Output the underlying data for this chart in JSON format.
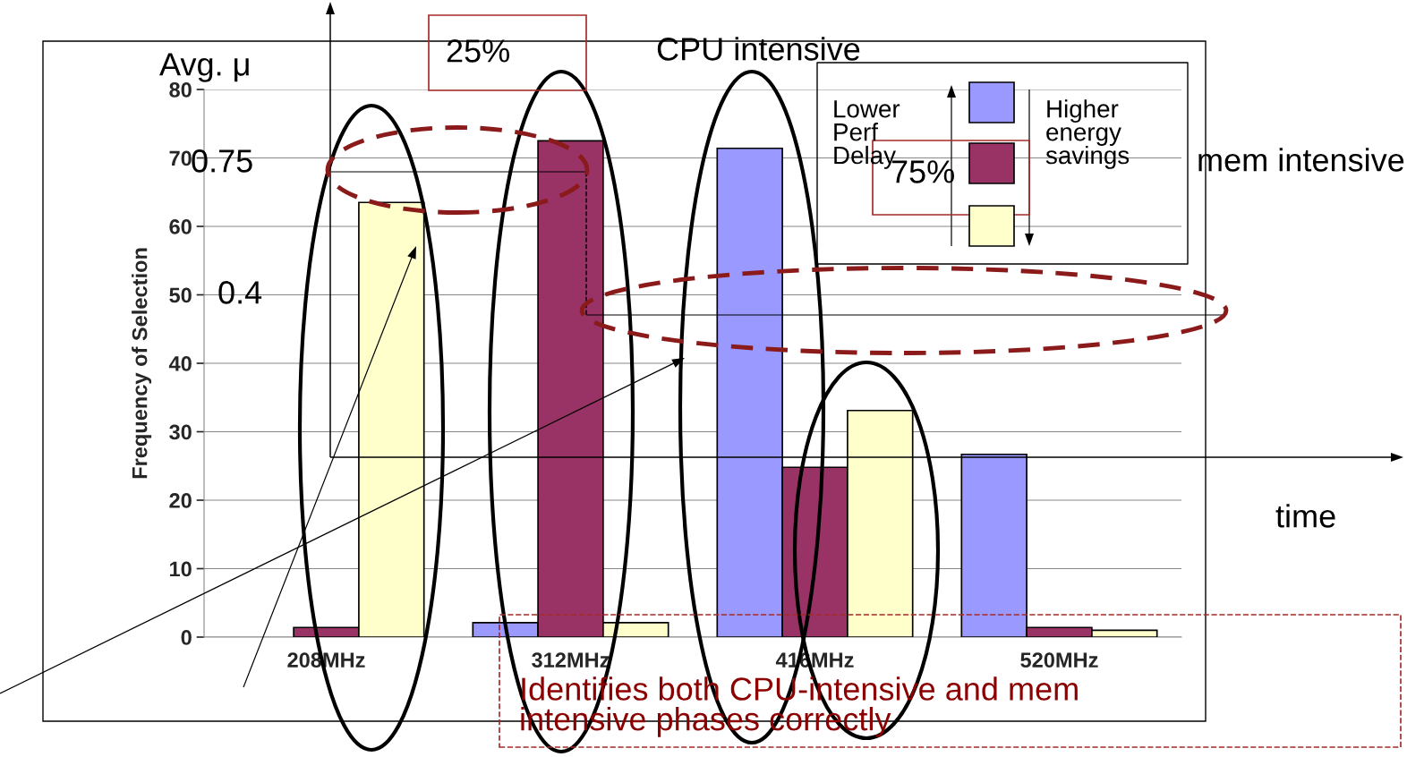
{
  "chart_data": {
    "type": "bar",
    "ylabel": "Frequency of Selection",
    "categories": [
      "208MHz",
      "312MHz",
      "416MHz",
      "520MHz"
    ],
    "series": [
      {
        "color": "#9999ff",
        "values": [
          null,
          2.1,
          71.4,
          26.7
        ]
      },
      {
        "color": "#993366",
        "values": [
          1.4,
          72.5,
          24.8,
          1.4
        ]
      },
      {
        "color": "#ffffcc",
        "values": [
          63.5,
          2.1,
          33.1,
          1.0
        ]
      }
    ],
    "ylim": [
      0,
      80
    ],
    "yticks": [
      0,
      10,
      20,
      30,
      40,
      50,
      60,
      70,
      80
    ],
    "grid": "y",
    "annotations": [
      "Avg. μ",
      "25%",
      "CPU intensive",
      "0.75",
      "0.4",
      "75%",
      "mem intensive",
      "time",
      "Lower\nPerf\nDelay",
      "Higher\nenergy\nsavings",
      "Identifies both CPU-intensive and mem\nintensive phases correctly"
    ]
  }
}
